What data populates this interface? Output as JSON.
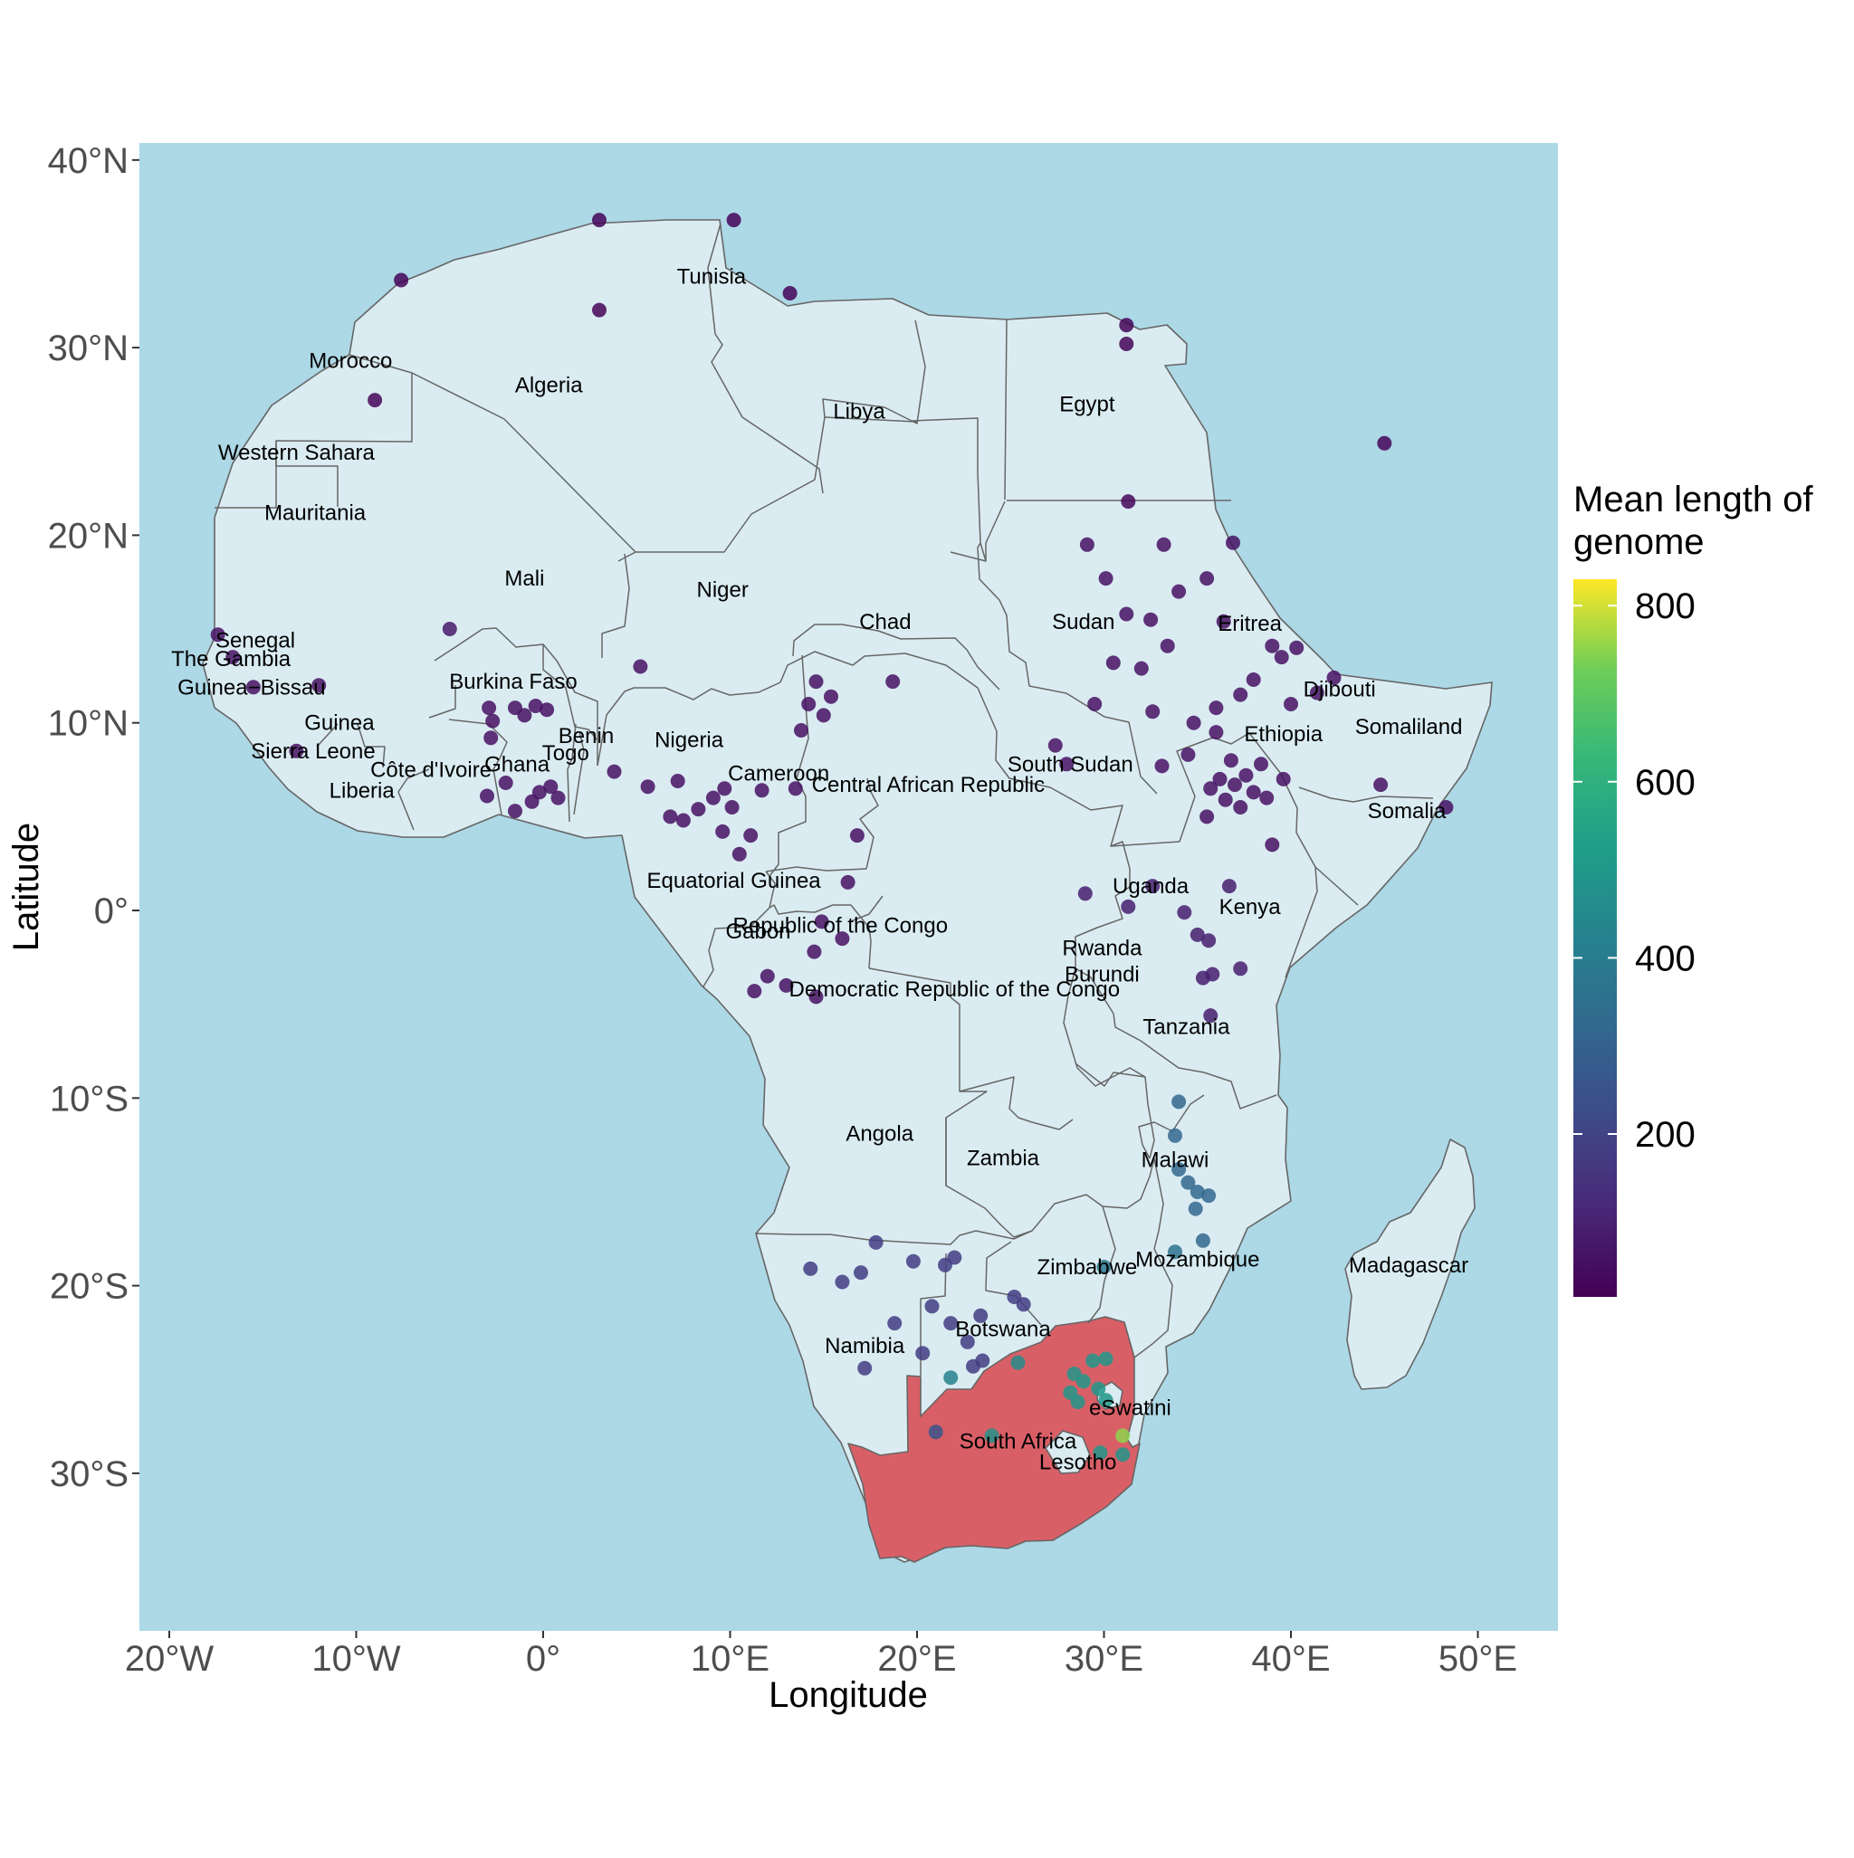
{
  "map": {
    "x_axis_title": "Longitude",
    "y_axis_title": "Latitude",
    "x_ticks": [
      {
        "lon": -20,
        "label": "20°W"
      },
      {
        "lon": -10,
        "label": "10°W"
      },
      {
        "lon": 0,
        "label": "0°"
      },
      {
        "lon": 10,
        "label": "10°E"
      },
      {
        "lon": 20,
        "label": "20°E"
      },
      {
        "lon": 30,
        "label": "30°E"
      },
      {
        "lon": 40,
        "label": "40°E"
      },
      {
        "lon": 50,
        "label": "50°E"
      }
    ],
    "y_ticks": [
      {
        "lat": 40,
        "label": "40°N"
      },
      {
        "lat": 30,
        "label": "30°N"
      },
      {
        "lat": 20,
        "label": "20°N"
      },
      {
        "lat": 10,
        "label": "10°N"
      },
      {
        "lat": 0,
        "label": "0°"
      },
      {
        "lat": -10,
        "label": "10°S"
      },
      {
        "lat": -20,
        "label": "20°S"
      },
      {
        "lat": -30,
        "label": "30°S"
      }
    ],
    "lon_range": [
      -21,
      55
    ],
    "lat_range": [
      -38,
      41
    ],
    "colors": {
      "ocean": "#add8e6",
      "land": "#daecf2",
      "border": "#666666",
      "highlight": "#d95f67"
    },
    "highlighted_country": "South Africa",
    "legend": {
      "title_line1": "Mean length of",
      "title_line2": "genome",
      "ticks": [
        {
          "value": 200,
          "label": "200"
        },
        {
          "value": 400,
          "label": "400"
        },
        {
          "value": 600,
          "label": "600"
        },
        {
          "value": 800,
          "label": "800"
        }
      ],
      "range": [
        15,
        830
      ],
      "palette": "viridis"
    },
    "country_labels": [
      {
        "name": "Tunisia",
        "lon": 9.0,
        "lat": 33.8
      },
      {
        "name": "Morocco",
        "lon": -10.3,
        "lat": 29.3
      },
      {
        "name": "Algeria",
        "lon": 0.3,
        "lat": 28.0
      },
      {
        "name": "Libya",
        "lon": 16.9,
        "lat": 26.6
      },
      {
        "name": "Egypt",
        "lon": 29.1,
        "lat": 27.0
      },
      {
        "name": "Western Sahara",
        "lon": -13.2,
        "lat": 24.4
      },
      {
        "name": "Mauritania",
        "lon": -12.2,
        "lat": 21.2
      },
      {
        "name": "Mali",
        "lon": -1.0,
        "lat": 17.7
      },
      {
        "name": "Niger",
        "lon": 9.6,
        "lat": 17.1
      },
      {
        "name": "Chad",
        "lon": 18.3,
        "lat": 15.4
      },
      {
        "name": "Sudan",
        "lon": 28.9,
        "lat": 15.4
      },
      {
        "name": "Eritrea",
        "lon": 37.8,
        "lat": 15.3
      },
      {
        "name": "Senegal",
        "lon": -15.4,
        "lat": 14.4
      },
      {
        "name": "The Gambia",
        "lon": -16.7,
        "lat": 13.4
      },
      {
        "name": "Guinea−Bissau",
        "lon": -15.6,
        "lat": 11.9
      },
      {
        "name": "Burkina Faso",
        "lon": -1.6,
        "lat": 12.2
      },
      {
        "name": "Djibouti",
        "lon": 42.6,
        "lat": 11.8
      },
      {
        "name": "Guinea",
        "lon": -10.9,
        "lat": 10.0
      },
      {
        "name": "Somaliland",
        "lon": 46.3,
        "lat": 9.8
      },
      {
        "name": "Benin",
        "lon": 2.3,
        "lat": 9.3
      },
      {
        "name": "Nigeria",
        "lon": 7.8,
        "lat": 9.1
      },
      {
        "name": "Ethiopia",
        "lon": 39.6,
        "lat": 9.4
      },
      {
        "name": "Sierra Leone",
        "lon": -12.3,
        "lat": 8.5
      },
      {
        "name": "Togo",
        "lon": 1.2,
        "lat": 8.4
      },
      {
        "name": "South Sudan",
        "lon": 28.2,
        "lat": 7.8
      },
      {
        "name": "Ghana",
        "lon": -1.4,
        "lat": 7.8
      },
      {
        "name": "Côte d'Ivoire",
        "lon": -6.0,
        "lat": 7.5
      },
      {
        "name": "Cameroon",
        "lon": 12.6,
        "lat": 7.3
      },
      {
        "name": "Central African Republic",
        "lon": 20.6,
        "lat": 6.7
      },
      {
        "name": "Liberia",
        "lon": -9.7,
        "lat": 6.4
      },
      {
        "name": "Somalia",
        "lon": 46.2,
        "lat": 5.3
      },
      {
        "name": "Equatorial Guinea",
        "lon": 10.2,
        "lat": 1.6
      },
      {
        "name": "Uganda",
        "lon": 32.5,
        "lat": 1.3
      },
      {
        "name": "Kenya",
        "lon": 37.8,
        "lat": 0.2
      },
      {
        "name": "Republic of the Congo",
        "lon": 15.9,
        "lat": -0.8
      },
      {
        "name": "Gabon",
        "lon": 11.5,
        "lat": -1.1
      },
      {
        "name": "Rwanda",
        "lon": 29.9,
        "lat": -2.0
      },
      {
        "name": "Burundi",
        "lon": 29.9,
        "lat": -3.4
      },
      {
        "name": "Democratic Republic of the Congo",
        "lon": 22.0,
        "lat": -4.2
      },
      {
        "name": "Tanzania",
        "lon": 34.4,
        "lat": -6.2
      },
      {
        "name": "Angola",
        "lon": 18.0,
        "lat": -11.9
      },
      {
        "name": "Zambia",
        "lon": 24.6,
        "lat": -13.2
      },
      {
        "name": "Malawi",
        "lon": 33.8,
        "lat": -13.3
      },
      {
        "name": "Mozambique",
        "lon": 35.0,
        "lat": -18.6
      },
      {
        "name": "Madagascar",
        "lon": 46.3,
        "lat": -18.9
      },
      {
        "name": "Zimbabwe",
        "lon": 29.1,
        "lat": -19.0
      },
      {
        "name": "Botswana",
        "lon": 24.6,
        "lat": -22.3
      },
      {
        "name": "Namibia",
        "lon": 17.2,
        "lat": -23.2
      },
      {
        "name": "eSwatini",
        "lon": 31.4,
        "lat": -26.5
      },
      {
        "name": "South Africa",
        "lon": 25.4,
        "lat": -28.3
      },
      {
        "name": "Lesotho",
        "lon": 28.6,
        "lat": -29.4
      }
    ],
    "sample_points": [
      {
        "lon": 3.0,
        "lat": 36.8,
        "value": 25
      },
      {
        "lon": 10.2,
        "lat": 36.8,
        "value": 25
      },
      {
        "lon": -7.6,
        "lat": 33.6,
        "value": 25
      },
      {
        "lon": 13.2,
        "lat": 32.9,
        "value": 25
      },
      {
        "lon": 3.0,
        "lat": 32.0,
        "value": 25
      },
      {
        "lon": -9.0,
        "lat": 27.2,
        "value": 30
      },
      {
        "lon": 31.2,
        "lat": 31.2,
        "value": 25
      },
      {
        "lon": 31.2,
        "lat": 30.2,
        "value": 25
      },
      {
        "lon": 45.0,
        "lat": 24.9,
        "value": 25
      },
      {
        "lon": 31.3,
        "lat": 21.8,
        "value": 30
      },
      {
        "lon": -17.4,
        "lat": 14.7,
        "value": 60
      },
      {
        "lon": -16.6,
        "lat": 13.5,
        "value": 60
      },
      {
        "lon": -15.5,
        "lat": 11.9,
        "value": 60
      },
      {
        "lon": -12.0,
        "lat": 12.0,
        "value": 60
      },
      {
        "lon": -13.2,
        "lat": 8.5,
        "value": 60
      },
      {
        "lon": -5.0,
        "lat": 15.0,
        "value": 80
      },
      {
        "lon": -2.9,
        "lat": 10.8,
        "value": 60
      },
      {
        "lon": -1.5,
        "lat": 10.8,
        "value": 60
      },
      {
        "lon": -0.4,
        "lat": 10.9,
        "value": 60
      },
      {
        "lon": 0.2,
        "lat": 10.7,
        "value": 60
      },
      {
        "lon": -2.7,
        "lat": 10.1,
        "value": 60
      },
      {
        "lon": -1.0,
        "lat": 10.4,
        "value": 60
      },
      {
        "lon": -2.8,
        "lat": 9.2,
        "value": 60
      },
      {
        "lon": -2.0,
        "lat": 6.8,
        "value": 60
      },
      {
        "lon": -3.0,
        "lat": 6.1,
        "value": 60
      },
      {
        "lon": -1.5,
        "lat": 5.3,
        "value": 60
      },
      {
        "lon": -0.6,
        "lat": 5.8,
        "value": 60
      },
      {
        "lon": 0.4,
        "lat": 6.6,
        "value": 60
      },
      {
        "lon": 0.8,
        "lat": 6.0,
        "value": 60
      },
      {
        "lon": -0.2,
        "lat": 6.3,
        "value": 60
      },
      {
        "lon": 3.8,
        "lat": 7.4,
        "value": 60
      },
      {
        "lon": 5.2,
        "lat": 13.0,
        "value": 60
      },
      {
        "lon": 5.6,
        "lat": 6.6,
        "value": 60
      },
      {
        "lon": 6.8,
        "lat": 5.0,
        "value": 60
      },
      {
        "lon": 7.5,
        "lat": 4.8,
        "value": 60
      },
      {
        "lon": 8.3,
        "lat": 5.4,
        "value": 60
      },
      {
        "lon": 9.1,
        "lat": 6.0,
        "value": 60
      },
      {
        "lon": 9.7,
        "lat": 6.5,
        "value": 60
      },
      {
        "lon": 10.1,
        "lat": 5.5,
        "value": 60
      },
      {
        "lon": 9.6,
        "lat": 4.2,
        "value": 60
      },
      {
        "lon": 10.5,
        "lat": 3.0,
        "value": 60
      },
      {
        "lon": 11.1,
        "lat": 4.0,
        "value": 60
      },
      {
        "lon": 7.2,
        "lat": 6.9,
        "value": 60
      },
      {
        "lon": 11.7,
        "lat": 6.4,
        "value": 60
      },
      {
        "lon": 14.2,
        "lat": 11.0,
        "value": 60
      },
      {
        "lon": 14.6,
        "lat": 12.2,
        "value": 60
      },
      {
        "lon": 15.0,
        "lat": 10.4,
        "value": 60
      },
      {
        "lon": 13.8,
        "lat": 9.6,
        "value": 60
      },
      {
        "lon": 15.4,
        "lat": 11.4,
        "value": 60
      },
      {
        "lon": 18.7,
        "lat": 12.2,
        "value": 60
      },
      {
        "lon": 16.8,
        "lat": 4.0,
        "value": 60
      },
      {
        "lon": 13.5,
        "lat": 6.5,
        "value": 60
      },
      {
        "lon": 11.3,
        "lat": -4.3,
        "value": 60
      },
      {
        "lon": 13.0,
        "lat": -4.0,
        "value": 60
      },
      {
        "lon": 14.6,
        "lat": -4.6,
        "value": 60
      },
      {
        "lon": 14.5,
        "lat": -2.2,
        "value": 60
      },
      {
        "lon": 14.9,
        "lat": -0.6,
        "value": 60
      },
      {
        "lon": 16.0,
        "lat": -1.5,
        "value": 60
      },
      {
        "lon": 16.3,
        "lat": 1.5,
        "value": 60
      },
      {
        "lon": 12.0,
        "lat": -3.5,
        "value": 60
      },
      {
        "lon": 29.1,
        "lat": 19.5,
        "value": 60
      },
      {
        "lon": 30.1,
        "lat": 17.7,
        "value": 60
      },
      {
        "lon": 32.5,
        "lat": 15.5,
        "value": 60
      },
      {
        "lon": 33.4,
        "lat": 14.1,
        "value": 60
      },
      {
        "lon": 32.0,
        "lat": 12.9,
        "value": 60
      },
      {
        "lon": 31.2,
        "lat": 15.8,
        "value": 60
      },
      {
        "lon": 34.0,
        "lat": 17.0,
        "value": 60
      },
      {
        "lon": 30.5,
        "lat": 13.2,
        "value": 60
      },
      {
        "lon": 29.5,
        "lat": 11.0,
        "value": 60
      },
      {
        "lon": 33.2,
        "lat": 19.5,
        "value": 60
      },
      {
        "lon": 35.5,
        "lat": 17.7,
        "value": 60
      },
      {
        "lon": 36.9,
        "lat": 19.6,
        "value": 60
      },
      {
        "lon": 36.4,
        "lat": 15.4,
        "value": 60
      },
      {
        "lon": 32.6,
        "lat": 10.6,
        "value": 60
      },
      {
        "lon": 27.4,
        "lat": 8.8,
        "value": 60
      },
      {
        "lon": 28.0,
        "lat": 7.8,
        "value": 60
      },
      {
        "lon": 33.1,
        "lat": 7.7,
        "value": 60
      },
      {
        "lon": 34.5,
        "lat": 8.3,
        "value": 60
      },
      {
        "lon": 36.0,
        "lat": 9.5,
        "value": 60
      },
      {
        "lon": 37.3,
        "lat": 11.5,
        "value": 60
      },
      {
        "lon": 38.0,
        "lat": 12.3,
        "value": 60
      },
      {
        "lon": 39.5,
        "lat": 13.5,
        "value": 60
      },
      {
        "lon": 40.0,
        "lat": 11.0,
        "value": 60
      },
      {
        "lon": 41.4,
        "lat": 11.6,
        "value": 60
      },
      {
        "lon": 42.3,
        "lat": 12.4,
        "value": 60
      },
      {
        "lon": 39.0,
        "lat": 14.1,
        "value": 60
      },
      {
        "lon": 40.3,
        "lat": 14.0,
        "value": 60
      },
      {
        "lon": 36.0,
        "lat": 10.8,
        "value": 60
      },
      {
        "lon": 34.8,
        "lat": 10.0,
        "value": 60
      },
      {
        "lon": 36.2,
        "lat": 7.0,
        "value": 60
      },
      {
        "lon": 37.0,
        "lat": 6.7,
        "value": 60
      },
      {
        "lon": 37.6,
        "lat": 7.2,
        "value": 60
      },
      {
        "lon": 38.0,
        "lat": 6.3,
        "value": 60
      },
      {
        "lon": 36.5,
        "lat": 5.9,
        "value": 60
      },
      {
        "lon": 37.3,
        "lat": 5.5,
        "value": 60
      },
      {
        "lon": 38.4,
        "lat": 7.8,
        "value": 60
      },
      {
        "lon": 35.7,
        "lat": 6.5,
        "value": 60
      },
      {
        "lon": 36.8,
        "lat": 8.0,
        "value": 60
      },
      {
        "lon": 38.7,
        "lat": 6.0,
        "value": 60
      },
      {
        "lon": 35.5,
        "lat": 5.0,
        "value": 60
      },
      {
        "lon": 39.6,
        "lat": 7.0,
        "value": 60
      },
      {
        "lon": 39.0,
        "lat": 3.5,
        "value": 60
      },
      {
        "lon": 44.8,
        "lat": 6.7,
        "value": 60
      },
      {
        "lon": 48.3,
        "lat": 5.5,
        "value": 60
      },
      {
        "lon": 29.0,
        "lat": 0.9,
        "value": 90
      },
      {
        "lon": 31.3,
        "lat": 0.2,
        "value": 90
      },
      {
        "lon": 32.6,
        "lat": 1.3,
        "value": 90
      },
      {
        "lon": 34.3,
        "lat": -0.1,
        "value": 90
      },
      {
        "lon": 36.7,
        "lat": 1.3,
        "value": 90
      },
      {
        "lon": 35.0,
        "lat": -1.3,
        "value": 90
      },
      {
        "lon": 35.6,
        "lat": -1.6,
        "value": 90
      },
      {
        "lon": 35.3,
        "lat": -3.6,
        "value": 90
      },
      {
        "lon": 35.8,
        "lat": -3.4,
        "value": 90
      },
      {
        "lon": 37.3,
        "lat": -3.1,
        "value": 90
      },
      {
        "lon": 35.7,
        "lat": -5.6,
        "value": 90
      },
      {
        "lon": 34.0,
        "lat": -10.2,
        "value": 320
      },
      {
        "lon": 33.8,
        "lat": -12.0,
        "value": 320
      },
      {
        "lon": 34.0,
        "lat": -13.8,
        "value": 320
      },
      {
        "lon": 34.5,
        "lat": -14.5,
        "value": 320
      },
      {
        "lon": 35.0,
        "lat": -15.0,
        "value": 320
      },
      {
        "lon": 35.6,
        "lat": -15.2,
        "value": 320
      },
      {
        "lon": 34.9,
        "lat": -15.9,
        "value": 320
      },
      {
        "lon": 35.3,
        "lat": -17.6,
        "value": 320
      },
      {
        "lon": 33.8,
        "lat": -18.2,
        "value": 360
      },
      {
        "lon": 30.0,
        "lat": -19.0,
        "value": 380
      },
      {
        "lon": 14.3,
        "lat": -19.1,
        "value": 180
      },
      {
        "lon": 16.0,
        "lat": -19.8,
        "value": 180
      },
      {
        "lon": 17.0,
        "lat": -19.3,
        "value": 180
      },
      {
        "lon": 17.8,
        "lat": -17.7,
        "value": 180
      },
      {
        "lon": 19.8,
        "lat": -18.7,
        "value": 180
      },
      {
        "lon": 22.0,
        "lat": -18.5,
        "value": 180
      },
      {
        "lon": 21.5,
        "lat": -18.9,
        "value": 180
      },
      {
        "lon": 18.8,
        "lat": -22.0,
        "value": 180
      },
      {
        "lon": 20.8,
        "lat": -21.1,
        "value": 180
      },
      {
        "lon": 21.8,
        "lat": -22.0,
        "value": 180
      },
      {
        "lon": 22.7,
        "lat": -23.0,
        "value": 180
      },
      {
        "lon": 23.4,
        "lat": -21.6,
        "value": 180
      },
      {
        "lon": 25.2,
        "lat": -20.6,
        "value": 180
      },
      {
        "lon": 25.7,
        "lat": -21.0,
        "value": 180
      },
      {
        "lon": 20.3,
        "lat": -23.6,
        "value": 180
      },
      {
        "lon": 17.2,
        "lat": -24.4,
        "value": 180
      },
      {
        "lon": 23.0,
        "lat": -24.3,
        "value": 180
      },
      {
        "lon": 23.5,
        "lat": -24.0,
        "value": 180
      },
      {
        "lon": 21.8,
        "lat": -24.9,
        "value": 420
      },
      {
        "lon": 25.4,
        "lat": -24.1,
        "value": 460
      },
      {
        "lon": 21.0,
        "lat": -27.8,
        "value": 250
      },
      {
        "lon": 24.0,
        "lat": -28.0,
        "value": 480
      },
      {
        "lon": 28.2,
        "lat": -25.7,
        "value": 500
      },
      {
        "lon": 28.6,
        "lat": -26.2,
        "value": 500
      },
      {
        "lon": 28.9,
        "lat": -25.1,
        "value": 500
      },
      {
        "lon": 29.4,
        "lat": -24.0,
        "value": 500
      },
      {
        "lon": 30.1,
        "lat": -23.9,
        "value": 500
      },
      {
        "lon": 29.7,
        "lat": -25.5,
        "value": 500
      },
      {
        "lon": 30.1,
        "lat": -26.1,
        "value": 500
      },
      {
        "lon": 28.4,
        "lat": -24.7,
        "value": 500
      },
      {
        "lon": 31.0,
        "lat": -29.0,
        "value": 500
      },
      {
        "lon": 29.8,
        "lat": -28.9,
        "value": 500
      },
      {
        "lon": 31.0,
        "lat": -28.0,
        "value": 750
      }
    ]
  }
}
